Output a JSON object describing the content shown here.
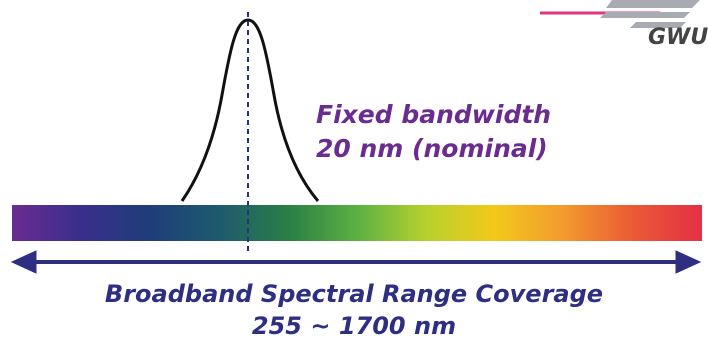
{
  "logo": {
    "text": "GWU",
    "accent_color": "#e0357f",
    "mark_color": "#a9abb3"
  },
  "annotation": {
    "line1": "Fixed bandwidth",
    "line2": "20 nm (nominal)",
    "color": "#6a2c8f"
  },
  "coverage": {
    "line1": "Broadband Spectral Range Coverage",
    "line2": "255 ~ 1700 nm",
    "color": "#2e2f80"
  },
  "spectrum_colors": [
    "#6a2c91",
    "#3a2e8c",
    "#1f3d7a",
    "#1e5a6e",
    "#2a7f45",
    "#5bb043",
    "#b7d12e",
    "#f3c81a",
    "#f29a2e",
    "#ea5a35",
    "#e52f45"
  ],
  "colors": {
    "peak_curve": "#111111",
    "center_line": "#2e2f80",
    "arrow": "#2e2f80"
  }
}
